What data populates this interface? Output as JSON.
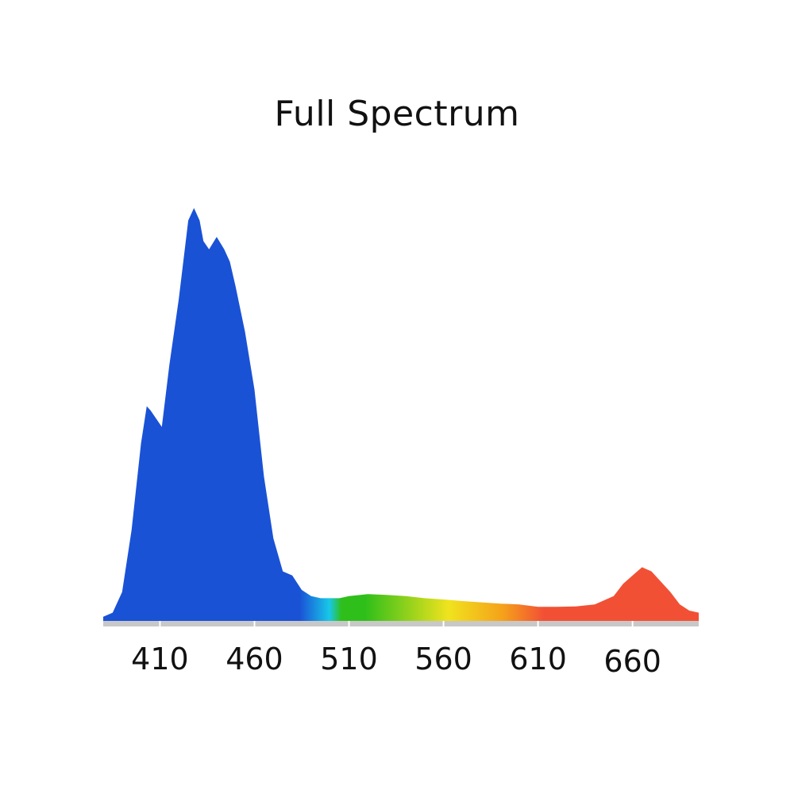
{
  "chart_data": {
    "type": "area",
    "title": "Full Spectrum",
    "xlabel": "",
    "ylabel": "",
    "x_ticks": [
      410,
      460,
      510,
      560,
      610,
      660
    ],
    "xlim": [
      380,
      695
    ],
    "ylim": [
      0,
      1
    ],
    "grid": false,
    "legend": "none",
    "series": [
      {
        "x": [
          380,
          385,
          390,
          395,
          400,
          403,
          405,
          408,
          411,
          415,
          420,
          425,
          428,
          431,
          433,
          436,
          440,
          444,
          447,
          450,
          455,
          460,
          465,
          470,
          475,
          480,
          485,
          490,
          495,
          500,
          505,
          510,
          520,
          530,
          540,
          550,
          560,
          570,
          580,
          590,
          600,
          610,
          620,
          630,
          640,
          650,
          655,
          660,
          665,
          670,
          675,
          680,
          685,
          690,
          695
        ],
        "values": [
          0.01,
          0.02,
          0.07,
          0.22,
          0.43,
          0.52,
          0.51,
          0.49,
          0.47,
          0.62,
          0.78,
          0.97,
          1.0,
          0.97,
          0.92,
          0.9,
          0.93,
          0.9,
          0.87,
          0.81,
          0.7,
          0.56,
          0.35,
          0.2,
          0.12,
          0.11,
          0.075,
          0.06,
          0.055,
          0.055,
          0.055,
          0.06,
          0.065,
          0.063,
          0.06,
          0.055,
          0.052,
          0.048,
          0.045,
          0.042,
          0.04,
          0.034,
          0.034,
          0.035,
          0.04,
          0.06,
          0.09,
          0.11,
          0.13,
          0.12,
          0.095,
          0.07,
          0.04,
          0.025,
          0.02
        ]
      }
    ]
  },
  "colors": {
    "violet_blue": "#1a52d6",
    "cyan": "#18c8e8",
    "green": "#2fbf1a",
    "yellow": "#f0e31e",
    "orange": "#f5a21a",
    "red": "#f25035",
    "axis": "#c8c8c8"
  }
}
